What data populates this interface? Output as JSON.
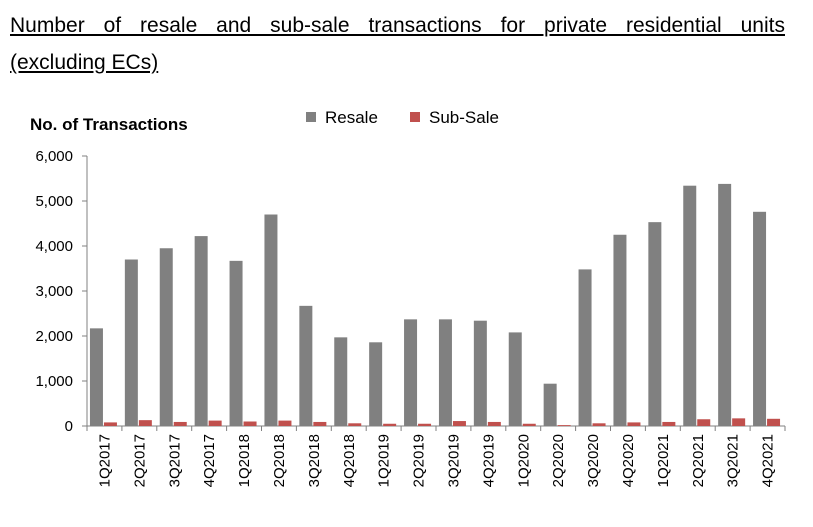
{
  "title_line1": "Number of resale and sub-sale transactions for private residential units",
  "title_line2": "(excluding ECs)",
  "chart_data": {
    "type": "bar",
    "title": "Number of resale and sub-sale transactions for private residential units (excluding ECs)",
    "ylabel": "No. of Transactions",
    "xlabel": "",
    "ylim": [
      0,
      6000
    ],
    "yticks": [
      "0",
      "1,000",
      "2,000",
      "3,000",
      "4,000",
      "5,000",
      "6,000"
    ],
    "ytick_values": [
      0,
      1000,
      2000,
      3000,
      4000,
      5000,
      6000
    ],
    "legend_position": "top",
    "grid": false,
    "categories": [
      "1Q2017",
      "2Q2017",
      "3Q2017",
      "4Q2017",
      "1Q2018",
      "2Q2018",
      "3Q2018",
      "4Q2018",
      "1Q2019",
      "2Q2019",
      "3Q2019",
      "4Q2019",
      "1Q2020",
      "2Q2020",
      "3Q2020",
      "4Q2020",
      "1Q2021",
      "2Q2021",
      "3Q2021",
      "4Q2021"
    ],
    "series": [
      {
        "name": "Resale",
        "color": "#808080",
        "values": [
          2170,
          3700,
          3950,
          4220,
          3670,
          4700,
          2670,
          1970,
          1860,
          2370,
          2370,
          2340,
          2080,
          940,
          3480,
          4250,
          4530,
          5340,
          5380,
          4760
        ]
      },
      {
        "name": "Sub-Sale",
        "color": "#c0504d",
        "values": [
          80,
          130,
          90,
          120,
          100,
          120,
          90,
          60,
          50,
          50,
          110,
          90,
          50,
          20,
          60,
          80,
          90,
          150,
          170,
          160
        ]
      }
    ]
  }
}
